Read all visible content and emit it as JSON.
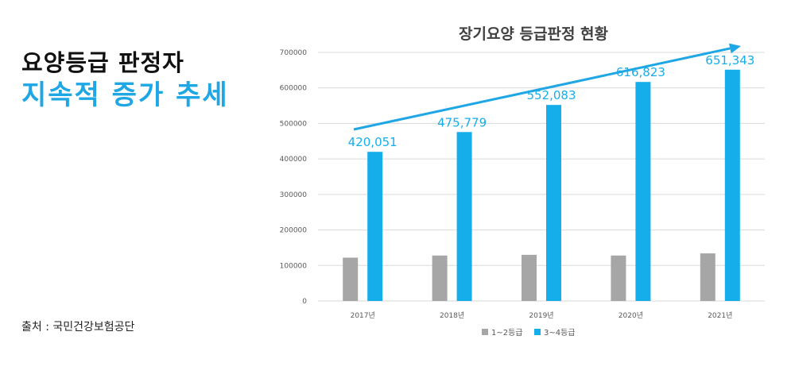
{
  "headline": {
    "line1": "요양등급 판정자",
    "line2": "지속적 증가 추세"
  },
  "source": "출처 : 국민건강보험공단",
  "colors": {
    "series1": "#a6a6a6",
    "series2": "#16aeea",
    "accent": "#1ea7e4",
    "arrow": "#1ea7e4"
  },
  "chart_data": {
    "type": "bar",
    "title": "장기요양 등급판정 현황",
    "categories": [
      "2017년",
      "2018년",
      "2019년",
      "2020년",
      "2021년"
    ],
    "series": [
      {
        "name": "1~2등급",
        "values": [
          122000,
          128000,
          130000,
          128000,
          134000
        ]
      },
      {
        "name": "3~4등급",
        "values": [
          420051,
          475779,
          552083,
          616823,
          651343
        ]
      }
    ],
    "data_labels": [
      "420,051",
      "475,779",
      "552,083",
      "616,823",
      "651,343"
    ],
    "y_ticks": [
      "0",
      "100000",
      "200000",
      "300000",
      "400000",
      "500000",
      "600000",
      "700000"
    ],
    "ylim": [
      0,
      700000
    ],
    "grid": true,
    "legend": "bottom",
    "trend_arrow": true
  }
}
